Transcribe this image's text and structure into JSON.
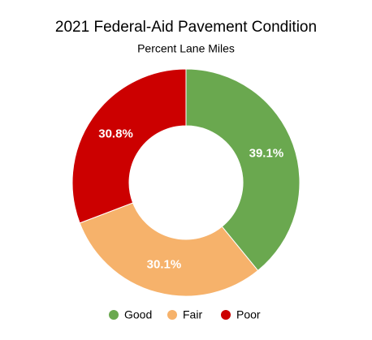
{
  "chart_data": {
    "type": "pie",
    "title": "2021 Federal-Aid Pavement Condition",
    "subtitle": "Percent Lane Miles",
    "categories": [
      "Good",
      "Fair",
      "Poor"
    ],
    "values": [
      39.1,
      30.1,
      30.8
    ],
    "value_labels": [
      "39.1%",
      "30.1%",
      "30.8%"
    ],
    "colors": [
      "#6aa84f",
      "#f6b26b",
      "#cc0000"
    ],
    "legend": "bottom"
  }
}
